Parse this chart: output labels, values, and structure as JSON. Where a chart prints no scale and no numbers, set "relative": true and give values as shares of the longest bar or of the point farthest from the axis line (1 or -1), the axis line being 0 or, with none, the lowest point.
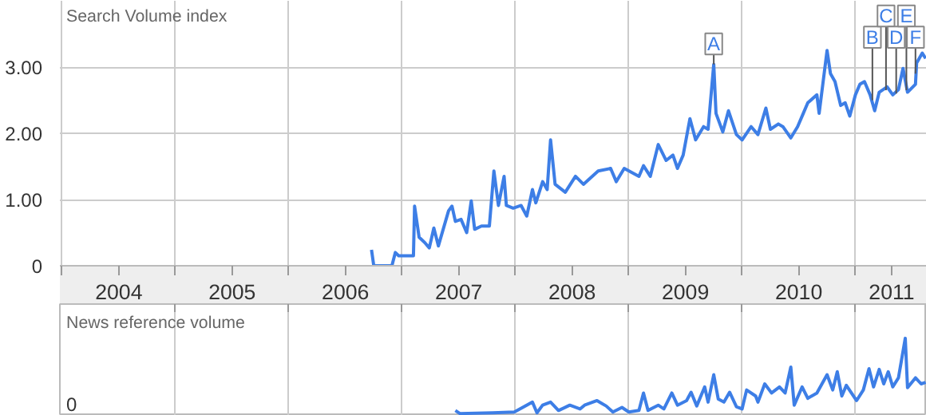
{
  "chart_data": [
    {
      "type": "line",
      "title": "Search Volume index",
      "xlim": [
        2003.98,
        2011.63
      ],
      "ylim": [
        0,
        4
      ],
      "xticks": [
        {
          "value": 2004,
          "label": null
        },
        {
          "value": 2004.5,
          "label": "2004"
        },
        {
          "value": 2005,
          "label": null
        },
        {
          "value": 2005.5,
          "label": "2005"
        },
        {
          "value": 2006,
          "label": null
        },
        {
          "value": 2006.5,
          "label": "2006"
        },
        {
          "value": 2007,
          "label": null
        },
        {
          "value": 2007.5,
          "label": "2007"
        },
        {
          "value": 2008,
          "label": null
        },
        {
          "value": 2008.5,
          "label": "2008"
        },
        {
          "value": 2009,
          "label": null
        },
        {
          "value": 2009.5,
          "label": "2009"
        },
        {
          "value": 2010,
          "label": null
        },
        {
          "value": 2010.5,
          "label": "2010"
        },
        {
          "value": 2011,
          "label": null
        },
        {
          "value": 2011.32,
          "label": "2011"
        }
      ],
      "yticks": [
        0,
        {
          "value": 1,
          "label": "1.00"
        },
        {
          "value": 2,
          "label": "2.00"
        },
        {
          "value": 3,
          "label": "3.00"
        }
      ],
      "grid": true,
      "series": [
        {
          "color": "#3d7ee6",
          "x": [
            2006.73,
            2006.75,
            2006.91,
            2006.94,
            2006.97,
            2007.1,
            2007.11,
            2007.15,
            2007.2,
            2007.24,
            2007.28,
            2007.32,
            2007.41,
            2007.44,
            2007.47,
            2007.52,
            2007.57,
            2007.61,
            2007.64,
            2007.7,
            2007.77,
            2007.81,
            2007.85,
            2007.9,
            2007.92,
            2007.98,
            2008.05,
            2008.1,
            2008.15,
            2008.18,
            2008.24,
            2008.28,
            2008.31,
            2008.35,
            2008.44,
            2008.53,
            2008.6,
            2008.73,
            2008.84,
            2008.89,
            2008.96,
            2009.09,
            2009.13,
            2009.19,
            2009.26,
            2009.33,
            2009.39,
            2009.43,
            2009.48,
            2009.54,
            2009.59,
            2009.66,
            2009.7,
            2009.75,
            2009.77,
            2009.83,
            2009.88,
            2009.95,
            2010.0,
            2010.08,
            2010.14,
            2010.21,
            2010.25,
            2010.32,
            2010.36,
            2010.43,
            2010.49,
            2010.54,
            2010.58,
            2010.66,
            2010.68,
            2010.75,
            2010.78,
            2010.82,
            2010.87,
            2010.91,
            2010.95,
            2011.0,
            2011.04,
            2011.08,
            2011.13,
            2011.17,
            2011.21,
            2011.28,
            2011.33,
            2011.38,
            2011.42,
            2011.46,
            2011.53,
            2011.54,
            2011.59,
            2011.62
          ],
          "values": [
            0.24,
            0,
            0,
            0.2,
            0.15,
            0.15,
            0.9,
            0.43,
            0.35,
            0.27,
            0.57,
            0.3,
            0.83,
            0.9,
            0.67,
            0.7,
            0.5,
            0.98,
            0.55,
            0.6,
            0.6,
            1.43,
            0.91,
            1.35,
            0.91,
            0.87,
            0.91,
            0.75,
            1.15,
            0.95,
            1.27,
            1.15,
            1.9,
            1.23,
            1.11,
            1.35,
            1.23,
            1.43,
            1.47,
            1.27,
            1.47,
            1.35,
            1.51,
            1.35,
            1.83,
            1.59,
            1.67,
            1.47,
            1.67,
            2.22,
            1.9,
            2.1,
            2.06,
            3.04,
            2.3,
            2.02,
            2.34,
            1.98,
            1.9,
            2.1,
            1.98,
            2.38,
            2.06,
            2.14,
            2.1,
            1.93,
            2.1,
            2.3,
            2.46,
            2.58,
            2.3,
            3.25,
            2.9,
            2.78,
            2.42,
            2.46,
            2.26,
            2.58,
            2.74,
            2.78,
            2.58,
            2.34,
            2.62,
            2.7,
            2.58,
            2.66,
            2.98,
            2.62,
            2.74,
            3.06,
            3.21,
            3.13
          ]
        }
      ],
      "annotations": [
        {
          "text": "A",
          "x": 2009.75,
          "y": 3.04
        },
        {
          "text": "B",
          "x": 2011.15,
          "y": 2.5
        },
        {
          "text": "C",
          "x": 2011.27,
          "y": 2.65
        },
        {
          "text": "D",
          "x": 2011.36,
          "y": 2.6
        },
        {
          "text": "E",
          "x": 2011.45,
          "y": 2.65
        },
        {
          "text": "F",
          "x": 2011.53,
          "y": 2.9
        }
      ]
    },
    {
      "type": "line",
      "title": "News reference volume",
      "relative": true,
      "xlim": [
        2003.98,
        2011.63
      ],
      "tick_labels": false,
      "xticks": [
        {
          "value": 2005,
          "label": null
        },
        {
          "value": 2006,
          "label": null
        },
        {
          "value": 2007,
          "label": null
        },
        {
          "value": 2008,
          "label": null
        },
        {
          "value": 2009,
          "label": null
        },
        {
          "value": 2010,
          "label": null
        },
        {
          "value": 2011,
          "label": null
        }
      ],
      "annotations": [
        "0"
      ],
      "grid": "x",
      "series": [
        {
          "color": "#3d7ee6",
          "x": [
            2007.47,
            2007.51,
            2007.8,
            2007.99,
            2008.15,
            2008.19,
            2008.24,
            2008.31,
            2008.38,
            2008.48,
            2008.57,
            2008.61,
            2008.72,
            2008.8,
            2008.86,
            2008.94,
            2009.0,
            2009.09,
            2009.13,
            2009.17,
            2009.26,
            2009.31,
            2009.38,
            2009.43,
            2009.51,
            2009.55,
            2009.6,
            2009.67,
            2009.7,
            2009.75,
            2009.79,
            2009.84,
            2009.89,
            2009.95,
            2010.0,
            2010.04,
            2010.12,
            2010.14,
            2010.2,
            2010.26,
            2010.33,
            2010.38,
            2010.43,
            2010.46,
            2010.53,
            2010.58,
            2010.66,
            2010.75,
            2010.8,
            2010.84,
            2010.88,
            2010.92,
            2011.01,
            2011.07,
            2011.12,
            2011.16,
            2011.21,
            2011.25,
            2011.29,
            2011.33,
            2011.38,
            2011.44,
            2011.46,
            2011.53,
            2011.58,
            2011.62
          ],
          "values": [
            0.05,
            0.01,
            0.02,
            0.03,
            0.16,
            0.02,
            0.12,
            0.16,
            0.05,
            0.12,
            0.07,
            0.12,
            0.18,
            0.11,
            0.03,
            0.09,
            0.03,
            0.05,
            0.28,
            0.05,
            0.12,
            0.07,
            0.28,
            0.12,
            0.18,
            0.29,
            0.11,
            0.36,
            0.16,
            0.52,
            0.2,
            0.16,
            0.29,
            0.1,
            0.07,
            0.32,
            0.24,
            0.16,
            0.4,
            0.28,
            0.36,
            0.28,
            0.62,
            0.12,
            0.36,
            0.21,
            0.28,
            0.52,
            0.32,
            0.56,
            0.24,
            0.38,
            0.18,
            0.32,
            0.6,
            0.36,
            0.59,
            0.4,
            0.56,
            0.36,
            0.48,
            1.0,
            0.35,
            0.48,
            0.4,
            0.42
          ]
        }
      ]
    }
  ]
}
